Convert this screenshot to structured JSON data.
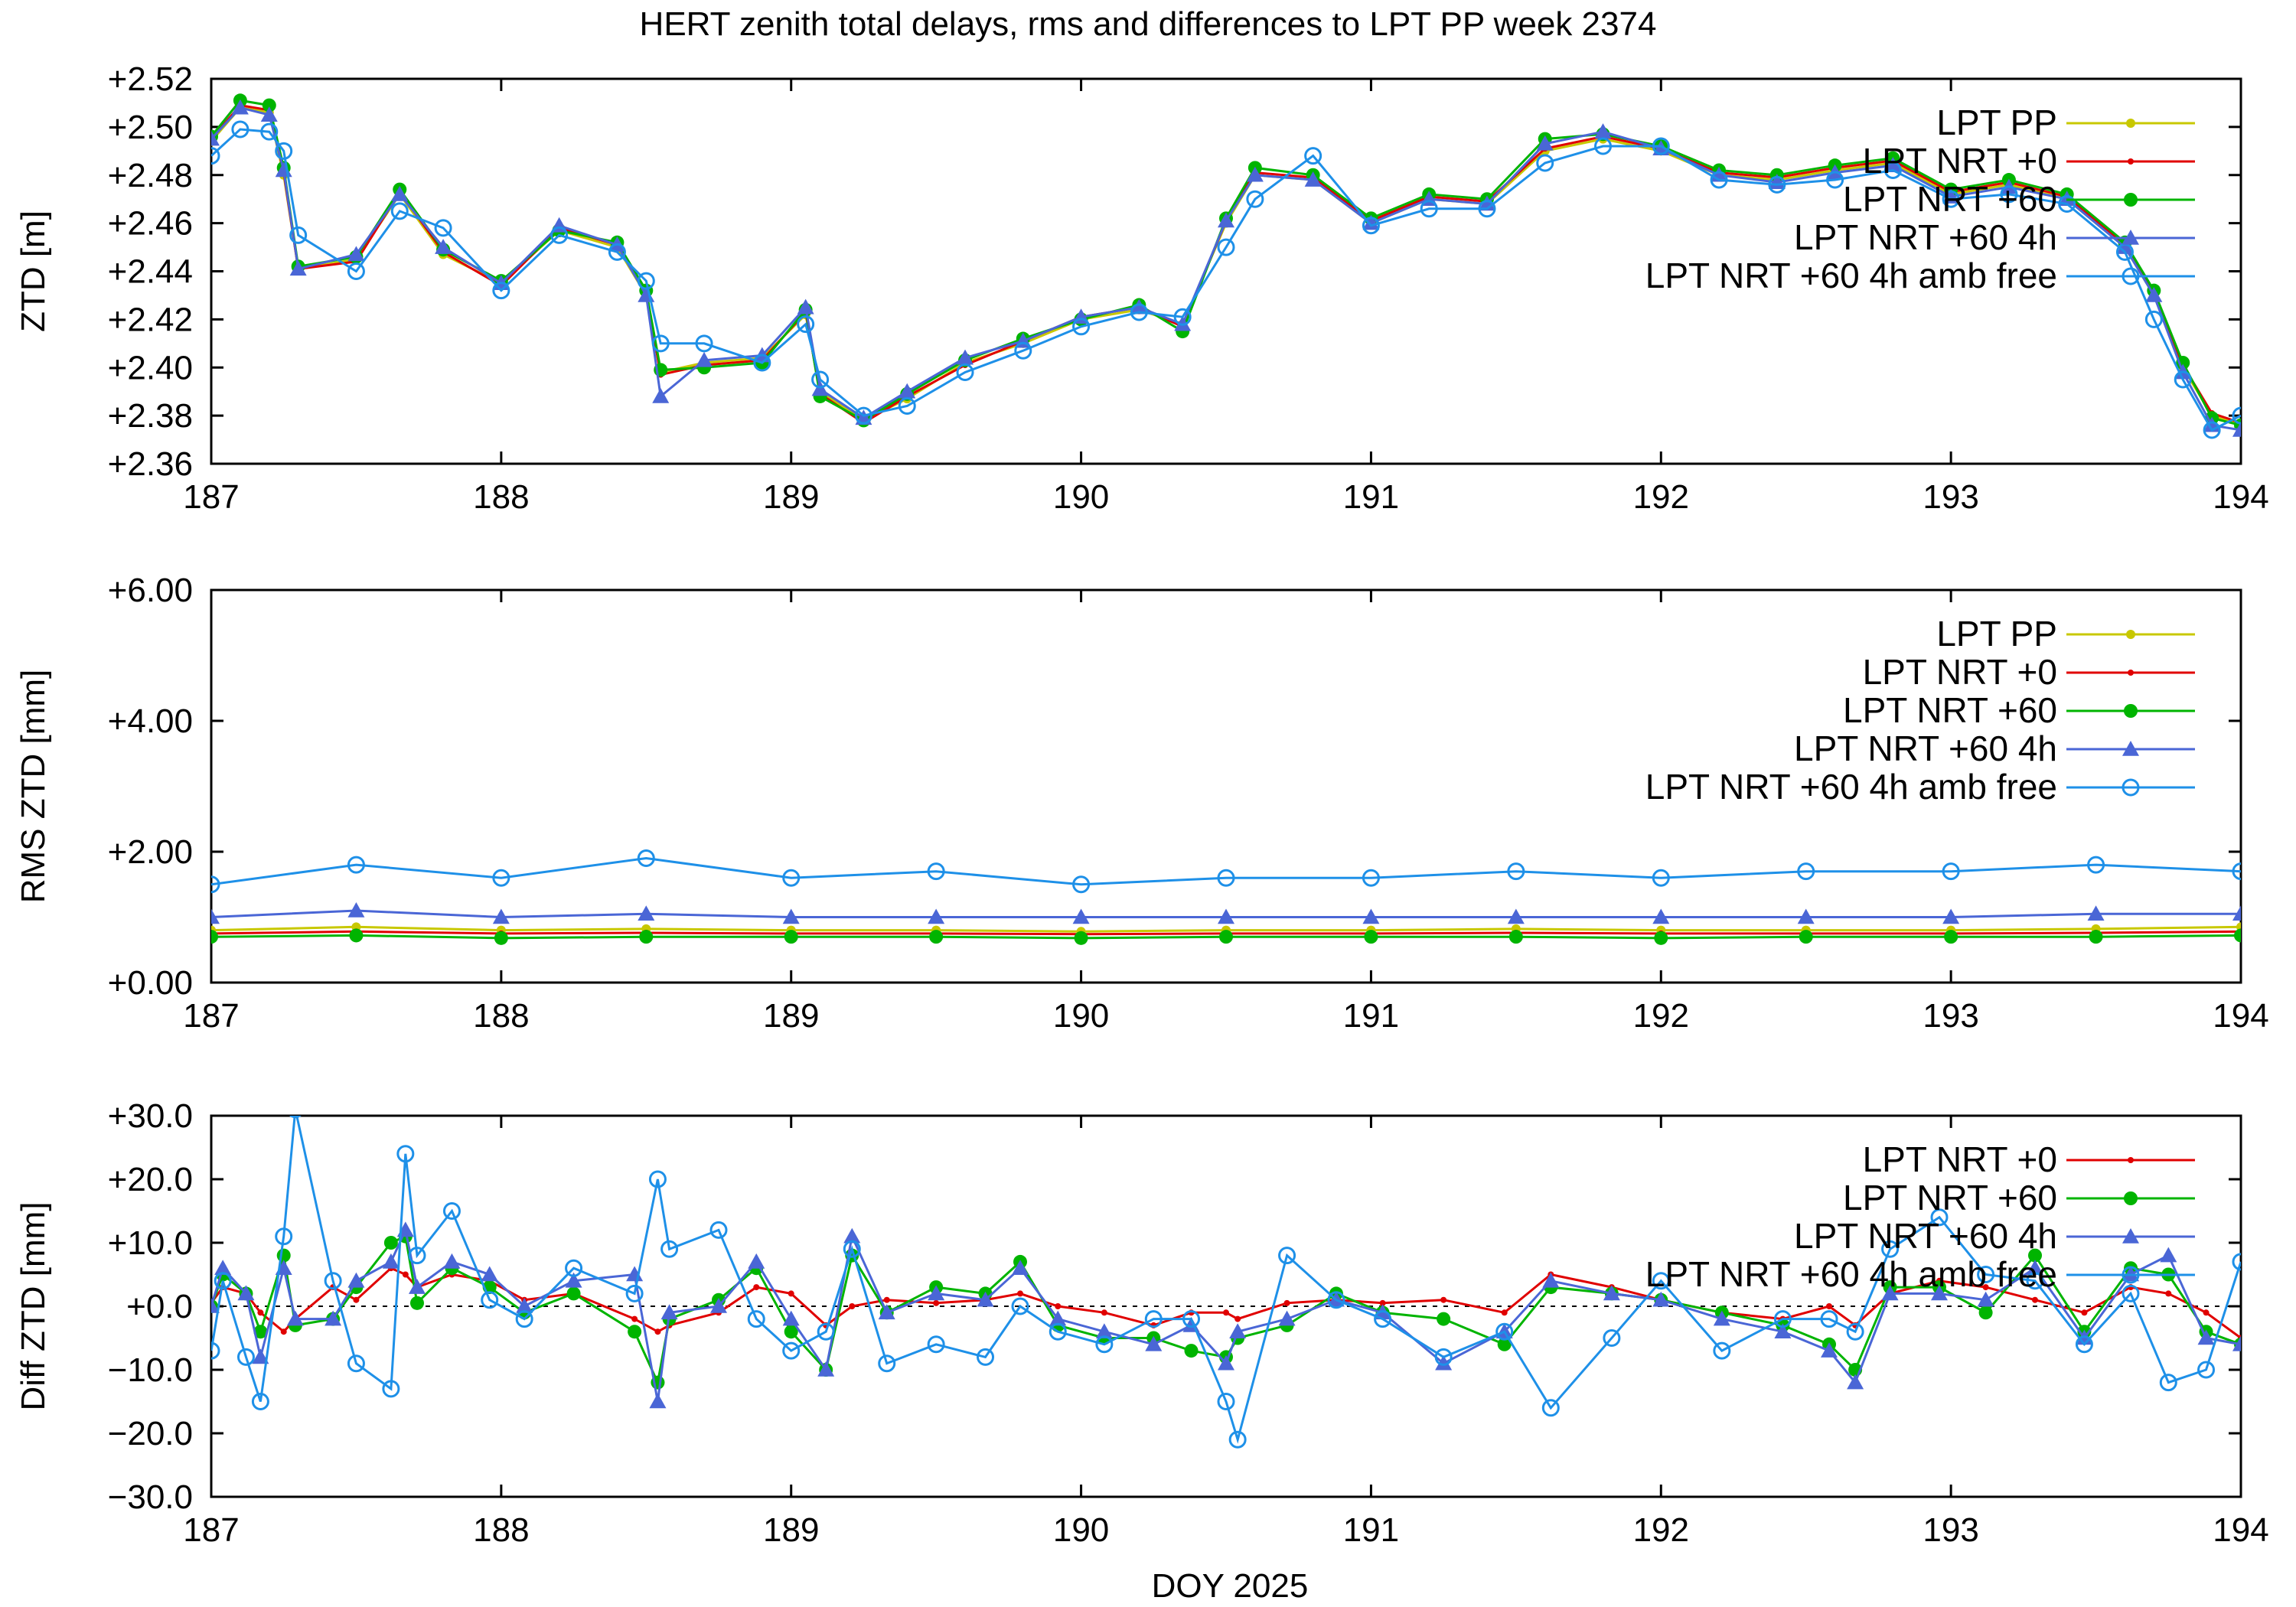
{
  "figure": {
    "title": "HERT zenith total delays, rms and differences to LPT PP week 2374",
    "xlabel": "DOY 2025"
  },
  "colors": {
    "lpt_pp": "#c8c800",
    "lpt_nrt_0": "#e00000",
    "lpt_nrt_60": "#00b400",
    "lpt_nrt_60_4h": "#4a66d6",
    "lpt_nrt_60_4h_amb_free": "#1e90e8"
  },
  "chart_data": [
    {
      "type": "line",
      "ylabel": "ZTD [m]",
      "xlim": [
        187,
        194
      ],
      "ylim": [
        2.36,
        2.52
      ],
      "x_ticks": [
        "187",
        "188",
        "189",
        "190",
        "191",
        "192",
        "193",
        "194"
      ],
      "y_ticks": [
        "+2.36",
        "+2.38",
        "+2.40",
        "+2.42",
        "+2.44",
        "+2.46",
        "+2.48",
        "+2.50",
        "+2.52"
      ],
      "legend": "top-right",
      "x": [
        187.0,
        187.1,
        187.2,
        187.25,
        187.3,
        187.5,
        187.65,
        187.8,
        188.0,
        188.2,
        188.4,
        188.5,
        188.55,
        188.7,
        188.9,
        189.05,
        189.1,
        189.25,
        189.4,
        189.6,
        189.8,
        190.0,
        190.2,
        190.35,
        190.5,
        190.6,
        190.8,
        191.0,
        191.2,
        191.4,
        191.6,
        191.8,
        192.0,
        192.2,
        192.4,
        192.6,
        192.8,
        193.0,
        193.2,
        193.4,
        193.6,
        193.7,
        193.8,
        193.9,
        194.0
      ],
      "series": [
        {
          "name": "LPT PP",
          "color_key": "lpt_pp",
          "marker": "dot",
          "values": [
            2.494,
            2.508,
            2.506,
            2.48,
            2.441,
            2.445,
            2.472,
            2.447,
            2.435,
            2.457,
            2.45,
            2.43,
            2.398,
            2.402,
            2.404,
            2.422,
            2.39,
            2.378,
            2.387,
            2.402,
            2.41,
            2.42,
            2.424,
            2.418,
            2.46,
            2.48,
            2.478,
            2.46,
            2.47,
            2.468,
            2.49,
            2.495,
            2.49,
            2.48,
            2.478,
            2.482,
            2.485,
            2.472,
            2.476,
            2.47,
            2.45,
            2.43,
            2.4,
            2.38,
            2.376
          ]
        },
        {
          "name": "LPT NRT +0",
          "color_key": "lpt_nrt_0",
          "marker": "small-dot",
          "values": [
            2.495,
            2.509,
            2.507,
            2.481,
            2.441,
            2.444,
            2.473,
            2.448,
            2.434,
            2.458,
            2.451,
            2.431,
            2.397,
            2.401,
            2.403,
            2.423,
            2.389,
            2.377,
            2.388,
            2.401,
            2.411,
            2.421,
            2.425,
            2.417,
            2.461,
            2.481,
            2.479,
            2.461,
            2.471,
            2.469,
            2.491,
            2.496,
            2.491,
            2.481,
            2.479,
            2.483,
            2.486,
            2.473,
            2.477,
            2.471,
            2.451,
            2.431,
            2.401,
            2.381,
            2.377
          ]
        },
        {
          "name": "LPT NRT +60",
          "color_key": "lpt_nrt_60",
          "marker": "filled-circle",
          "values": [
            2.496,
            2.511,
            2.509,
            2.483,
            2.442,
            2.446,
            2.474,
            2.449,
            2.436,
            2.457,
            2.452,
            2.432,
            2.399,
            2.4,
            2.402,
            2.424,
            2.388,
            2.378,
            2.389,
            2.403,
            2.412,
            2.42,
            2.426,
            2.415,
            2.462,
            2.483,
            2.48,
            2.462,
            2.472,
            2.47,
            2.495,
            2.497,
            2.492,
            2.482,
            2.48,
            2.484,
            2.487,
            2.474,
            2.478,
            2.472,
            2.452,
            2.432,
            2.402,
            2.379,
            2.376
          ]
        },
        {
          "name": "LPT NRT +60 4h",
          "color_key": "lpt_nrt_60_4h",
          "marker": "triangle",
          "values": [
            2.495,
            2.508,
            2.505,
            2.482,
            2.441,
            2.447,
            2.472,
            2.45,
            2.435,
            2.459,
            2.451,
            2.43,
            2.388,
            2.403,
            2.405,
            2.425,
            2.391,
            2.379,
            2.39,
            2.404,
            2.411,
            2.421,
            2.425,
            2.418,
            2.461,
            2.48,
            2.478,
            2.46,
            2.47,
            2.468,
            2.493,
            2.498,
            2.491,
            2.48,
            2.477,
            2.481,
            2.484,
            2.471,
            2.475,
            2.47,
            2.45,
            2.43,
            2.398,
            2.376,
            2.374
          ]
        },
        {
          "name": "LPT NRT +60 4h amb free",
          "color_key": "lpt_nrt_60_4h_amb_free",
          "marker": "open-circle",
          "values": [
            2.488,
            2.499,
            2.498,
            2.49,
            2.455,
            2.44,
            2.465,
            2.458,
            2.432,
            2.455,
            2.448,
            2.436,
            2.41,
            2.41,
            2.402,
            2.418,
            2.395,
            2.38,
            2.384,
            2.398,
            2.407,
            2.417,
            2.423,
            2.421,
            2.45,
            2.47,
            2.488,
            2.459,
            2.466,
            2.466,
            2.485,
            2.492,
            2.492,
            2.478,
            2.476,
            2.478,
            2.482,
            2.47,
            2.472,
            2.468,
            2.448,
            2.42,
            2.395,
            2.374,
            2.38
          ]
        }
      ]
    },
    {
      "type": "line",
      "ylabel": "RMS ZTD [mm]",
      "xlim": [
        187,
        194
      ],
      "ylim": [
        0,
        6
      ],
      "x_ticks": [
        "187",
        "188",
        "189",
        "190",
        "191",
        "192",
        "193",
        "194"
      ],
      "y_ticks": [
        "+0.00",
        "+2.00",
        "+4.00",
        "+6.00"
      ],
      "legend": "top-right",
      "x": [
        187.0,
        187.5,
        188.0,
        188.5,
        189.0,
        189.5,
        190.0,
        190.5,
        191.0,
        191.5,
        192.0,
        192.5,
        193.0,
        193.5,
        194.0
      ],
      "series": [
        {
          "name": "LPT PP",
          "color_key": "lpt_pp",
          "marker": "dot",
          "values": [
            0.8,
            0.85,
            0.8,
            0.82,
            0.8,
            0.8,
            0.78,
            0.8,
            0.8,
            0.82,
            0.8,
            0.8,
            0.8,
            0.82,
            0.85
          ]
        },
        {
          "name": "LPT NRT +0",
          "color_key": "lpt_nrt_0",
          "marker": "small-dot",
          "values": [
            0.75,
            0.78,
            0.75,
            0.76,
            0.75,
            0.75,
            0.74,
            0.75,
            0.75,
            0.76,
            0.75,
            0.75,
            0.75,
            0.76,
            0.78
          ]
        },
        {
          "name": "LPT NRT +60",
          "color_key": "lpt_nrt_60",
          "marker": "filled-circle",
          "values": [
            0.7,
            0.72,
            0.68,
            0.7,
            0.7,
            0.7,
            0.68,
            0.7,
            0.7,
            0.7,
            0.68,
            0.7,
            0.7,
            0.7,
            0.72
          ]
        },
        {
          "name": "LPT NRT +60 4h",
          "color_key": "lpt_nrt_60_4h",
          "marker": "triangle",
          "values": [
            1.0,
            1.1,
            1.0,
            1.05,
            1.0,
            1.0,
            1.0,
            1.0,
            1.0,
            1.0,
            1.0,
            1.0,
            1.0,
            1.05,
            1.05
          ]
        },
        {
          "name": "LPT NRT +60 4h amb free",
          "color_key": "lpt_nrt_60_4h_amb_free",
          "marker": "open-circle",
          "values": [
            1.5,
            1.8,
            1.6,
            1.9,
            1.6,
            1.7,
            1.5,
            1.6,
            1.6,
            1.7,
            1.6,
            1.7,
            1.7,
            1.8,
            1.7
          ]
        }
      ]
    },
    {
      "type": "line",
      "ylabel": "Diff ZTD [mm]",
      "xlabel": "DOY 2025",
      "xlim": [
        187,
        194
      ],
      "ylim": [
        -30,
        30
      ],
      "x_ticks": [
        "187",
        "188",
        "189",
        "190",
        "191",
        "192",
        "193",
        "194"
      ],
      "y_ticks": [
        "−30.0",
        "−20.0",
        "−10.0",
        "+0.0",
        "+10.0",
        "+20.0",
        "+30.0"
      ],
      "legend": "top-right",
      "zero_line": true,
      "x": [
        187.0,
        187.04,
        187.12,
        187.17,
        187.25,
        187.29,
        187.42,
        187.5,
        187.62,
        187.67,
        187.71,
        187.83,
        187.96,
        188.08,
        188.25,
        188.46,
        188.54,
        188.58,
        188.75,
        188.88,
        189.0,
        189.12,
        189.21,
        189.33,
        189.5,
        189.67,
        189.79,
        189.92,
        190.08,
        190.25,
        190.38,
        190.5,
        190.54,
        190.71,
        190.88,
        191.04,
        191.25,
        191.46,
        191.62,
        191.83,
        192.0,
        192.21,
        192.42,
        192.58,
        192.67,
        192.79,
        192.96,
        193.12,
        193.29,
        193.46,
        193.62,
        193.75,
        193.88,
        194.0
      ],
      "series": [
        {
          "name": "LPT NRT +0",
          "color_key": "lpt_nrt_0",
          "marker": "small-dot",
          "values": [
            0.5,
            3.0,
            2.0,
            -1.0,
            -4.0,
            -2.0,
            3.0,
            1.0,
            6.0,
            5.0,
            3.0,
            5.0,
            4.0,
            1.0,
            2.0,
            -2.0,
            -4.0,
            -3.0,
            -1.0,
            3.0,
            2.0,
            -3.0,
            0.0,
            1.0,
            0.5,
            1.0,
            2.0,
            0.0,
            -1.0,
            -3.0,
            -1.0,
            -1.0,
            -2.0,
            0.5,
            1.0,
            0.5,
            1.0,
            -1.0,
            5.0,
            3.0,
            1.0,
            -1.0,
            -2.0,
            0.0,
            -3.0,
            2.0,
            4.0,
            3.0,
            1.0,
            -1.0,
            3.0,
            2.0,
            -1.0,
            -5.0
          ]
        },
        {
          "name": "LPT NRT +60",
          "color_key": "lpt_nrt_60",
          "marker": "filled-circle",
          "values": [
            0.0,
            5.0,
            2.0,
            -4.0,
            8.0,
            -3.0,
            -2.0,
            3.0,
            10.0,
            11.0,
            0.5,
            6.0,
            3.0,
            -1.0,
            2.0,
            -4.0,
            -12.0,
            -2.0,
            1.0,
            6.0,
            -4.0,
            -10.0,
            8.0,
            -1.0,
            3.0,
            2.0,
            7.0,
            -3.0,
            -5.0,
            -5.0,
            -7.0,
            -8.0,
            -5.0,
            -3.0,
            2.0,
            -1.0,
            -2.0,
            -6.0,
            3.0,
            2.0,
            1.0,
            -1.0,
            -3.0,
            -6.0,
            -10.0,
            3.0,
            3.0,
            -1.0,
            8.0,
            -4.0,
            6.0,
            5.0,
            -4.0,
            -6.0
          ]
        },
        {
          "name": "LPT NRT +60 4h",
          "color_key": "lpt_nrt_60_4h",
          "marker": "triangle",
          "values": [
            0.0,
            6.0,
            2.0,
            -8.0,
            6.0,
            -2.0,
            -2.0,
            4.0,
            7.0,
            12.0,
            3.0,
            7.0,
            5.0,
            0.0,
            4.0,
            5.0,
            -15.0,
            -1.0,
            0.0,
            7.0,
            -2.0,
            -10.0,
            11.0,
            -1.0,
            2.0,
            1.0,
            6.0,
            -2.0,
            -4.0,
            -6.0,
            -3.0,
            -9.0,
            -4.0,
            -2.0,
            1.0,
            -1.0,
            -9.0,
            -4.0,
            4.0,
            2.0,
            1.0,
            -2.0,
            -4.0,
            -7.0,
            -12.0,
            2.0,
            2.0,
            1.0,
            6.0,
            -5.0,
            5.0,
            8.0,
            -5.0,
            -6.0
          ]
        },
        {
          "name": "LPT NRT +60 4h amb free",
          "color_key": "lpt_nrt_60_4h_amb_free",
          "marker": "open-circle",
          "values": [
            -7.0,
            4.0,
            -8.0,
            -15.0,
            11.0,
            31.0,
            4.0,
            -9.0,
            -13.0,
            24.0,
            8.0,
            15.0,
            1.0,
            -2.0,
            6.0,
            2.0,
            20.0,
            9.0,
            12.0,
            -2.0,
            -7.0,
            -4.0,
            9.0,
            -9.0,
            -6.0,
            -8.0,
            0.0,
            -4.0,
            -6.0,
            -2.0,
            -2.0,
            -15.0,
            -21.0,
            8.0,
            1.0,
            -2.0,
            -8.0,
            -4.0,
            -16.0,
            -5.0,
            4.0,
            -7.0,
            -2.0,
            -2.0,
            -4.0,
            9.0,
            14.0,
            5.0,
            4.0,
            -6.0,
            2.0,
            -12.0,
            -10.0,
            7.0
          ]
        }
      ]
    }
  ]
}
